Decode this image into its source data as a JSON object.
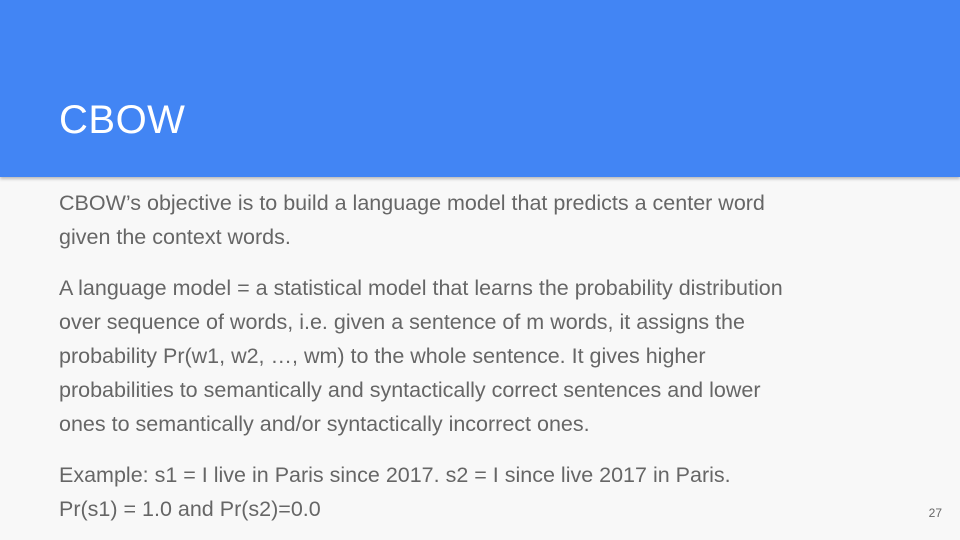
{
  "slide": {
    "title": "CBOW",
    "page_number": "27",
    "paragraphs": [
      {
        "lines": [
          "CBOW’s objective is to build a language model that predicts a center word",
          "given the context words."
        ]
      },
      {
        "lines": [
          "A language model = a statistical model that learns the probability distribution",
          "over sequence of words, i.e. given a sentence of m words, it assigns the",
          "probability Pr(w1, w2, …, wm) to the whole sentence. It gives higher",
          "probabilities to semantically and syntactically correct sentences and lower",
          "ones to semantically and/or syntactically incorrect ones."
        ]
      },
      {
        "lines": [
          "Example: s1 = I live in Paris since 2017. s2 = I since live 2017 in Paris.",
          "Pr(s1) = 1.0 and Pr(s2)=0.0"
        ]
      }
    ]
  },
  "colors": {
    "header": "#4285f4",
    "background": "#f8f8f8",
    "title_text": "#ffffff",
    "body_text": "#666666"
  }
}
